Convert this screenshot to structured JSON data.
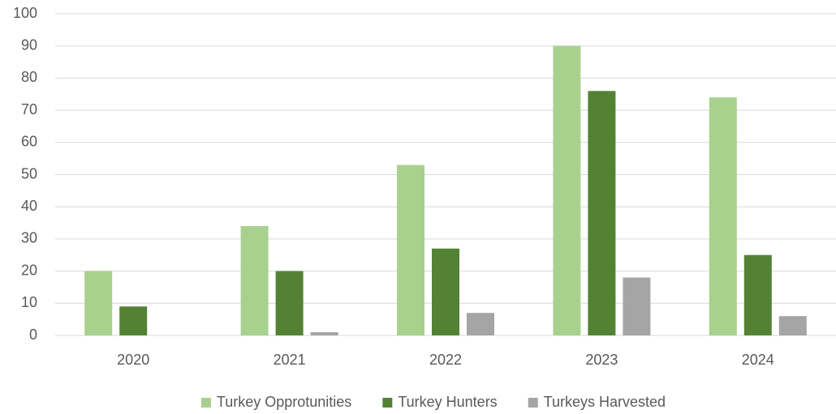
{
  "chart_data": {
    "type": "bar",
    "categories": [
      "2020",
      "2021",
      "2022",
      "2023",
      "2024"
    ],
    "series": [
      {
        "name": "Turkey Opprotunities",
        "color": "#a9d18e",
        "values": [
          20,
          34,
          53,
          90,
          74
        ]
      },
      {
        "name": "Turkey Hunters",
        "color": "#548235",
        "values": [
          9,
          20,
          27,
          76,
          25
        ]
      },
      {
        "name": "Turkeys Harvested",
        "color": "#a5a5a5",
        "values": [
          0,
          1,
          7,
          18,
          6
        ]
      }
    ],
    "ylim": [
      0,
      100
    ],
    "yticks": [
      0,
      10,
      20,
      30,
      40,
      50,
      60,
      70,
      80,
      90,
      100
    ],
    "grid": true,
    "legend": "bottom"
  }
}
